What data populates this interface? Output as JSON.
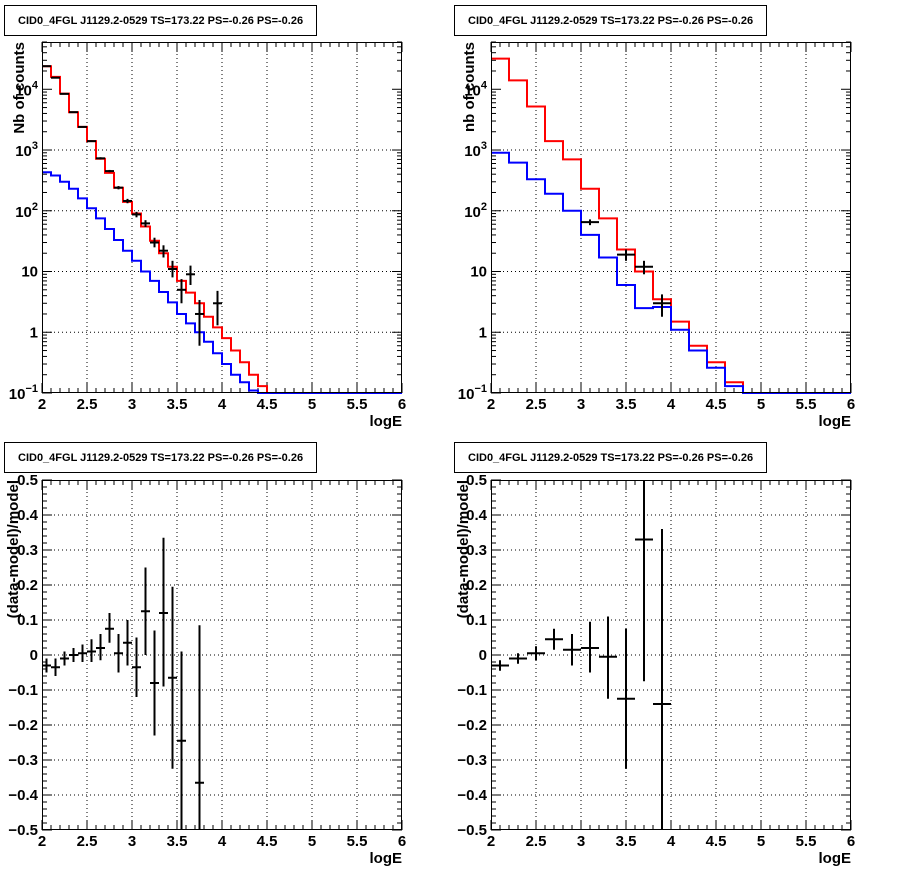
{
  "chart_data": [
    {
      "type": "line",
      "kind": "counts",
      "title": "CID0_4FGL J1129.2-0529 TS=173.22 PS=-0.26 PS=-0.26",
      "xlabel": "logE",
      "ylabel": "Nb of counts",
      "xlim": [
        2,
        6
      ],
      "ylim": [
        0.1,
        60000
      ],
      "yscale": "log",
      "grid": true,
      "x_ticks": [
        "2",
        "2.5",
        "3",
        "3.5",
        "4",
        "4.5",
        "5",
        "5.5",
        "6"
      ],
      "y_ticks": [
        {
          "value": 0.1,
          "base": "10",
          "exp": "−1"
        },
        {
          "value": 1,
          "label": "1"
        },
        {
          "value": 10,
          "label": "10"
        },
        {
          "value": 100,
          "base": "10",
          "exp": "2"
        },
        {
          "value": 1000,
          "base": "10",
          "exp": "3"
        },
        {
          "value": 10000,
          "base": "10",
          "exp": "4"
        }
      ],
      "bin_edges": [
        2.0,
        2.1,
        2.2,
        2.3,
        2.4,
        2.5,
        2.6,
        2.7,
        2.8,
        2.9,
        3.0,
        3.1,
        3.2,
        3.3,
        3.4,
        3.5,
        3.6,
        3.7,
        3.8,
        3.9,
        4.0,
        4.1,
        4.2,
        4.3,
        4.4,
        4.5,
        4.6,
        4.7,
        4.8,
        4.9,
        5.0,
        5.1,
        5.2,
        5.3,
        5.4,
        5.5,
        5.6,
        5.7,
        5.8,
        5.9,
        6.0
      ],
      "series": [
        {
          "color": "#ff0000",
          "values": [
            24000,
            16000,
            8500,
            4200,
            2400,
            1400,
            720,
            420,
            240,
            140,
            90,
            55,
            32,
            20,
            12,
            7,
            4.5,
            3.0,
            1.8,
            1.2,
            0.8,
            0.5,
            0.32,
            0.2,
            0.13,
            0.1,
            0.1,
            0.1,
            0.1,
            0.1,
            0.1,
            0.1,
            0.1,
            0.1,
            0.1,
            0.1,
            0.1,
            0.1,
            0.1,
            0.1
          ]
        },
        {
          "color": "#0000ff",
          "values": [
            430,
            380,
            300,
            230,
            160,
            110,
            75,
            50,
            33,
            22,
            15,
            10,
            7,
            4.6,
            3.1,
            2.0,
            1.4,
            1.0,
            0.7,
            0.45,
            0.3,
            0.2,
            0.15,
            0.11,
            0.1,
            0.1,
            0.1,
            0.1,
            0.1,
            0.1,
            0.1,
            0.1,
            0.1,
            0.1,
            0.1,
            0.1,
            0.1,
            0.1,
            0.1,
            0.1
          ]
        }
      ],
      "points": [
        {
          "x": 2.05,
          "y": 24000,
          "xerr": 0.05,
          "ylo": 23700,
          "yhi": 24300
        },
        {
          "x": 2.15,
          "y": 15500,
          "xerr": 0.05,
          "ylo": 15300,
          "yhi": 15700
        },
        {
          "x": 2.25,
          "y": 8400,
          "xerr": 0.05,
          "ylo": 8300,
          "yhi": 8500
        },
        {
          "x": 2.35,
          "y": 4200,
          "xerr": 0.05,
          "ylo": 4100,
          "yhi": 4300
        },
        {
          "x": 2.45,
          "y": 2400,
          "xerr": 0.05,
          "ylo": 2350,
          "yhi": 2450
        },
        {
          "x": 2.55,
          "y": 1400,
          "xerr": 0.05,
          "ylo": 1360,
          "yhi": 1440
        },
        {
          "x": 2.65,
          "y": 730,
          "xerr": 0.05,
          "ylo": 700,
          "yhi": 760
        },
        {
          "x": 2.75,
          "y": 450,
          "xerr": 0.05,
          "ylo": 430,
          "yhi": 470
        },
        {
          "x": 2.85,
          "y": 240,
          "xerr": 0.05,
          "ylo": 225,
          "yhi": 255
        },
        {
          "x": 2.95,
          "y": 145,
          "xerr": 0.05,
          "ylo": 133,
          "yhi": 157
        },
        {
          "x": 3.05,
          "y": 87,
          "xerr": 0.05,
          "ylo": 78,
          "yhi": 96
        },
        {
          "x": 3.15,
          "y": 62,
          "xerr": 0.05,
          "ylo": 54,
          "yhi": 70
        },
        {
          "x": 3.25,
          "y": 30,
          "xerr": 0.05,
          "ylo": 25,
          "yhi": 36
        },
        {
          "x": 3.35,
          "y": 22,
          "xerr": 0.05,
          "ylo": 17,
          "yhi": 27
        },
        {
          "x": 3.45,
          "y": 11,
          "xerr": 0.05,
          "ylo": 8,
          "yhi": 15
        },
        {
          "x": 3.55,
          "y": 5,
          "xerr": 0.05,
          "ylo": 3,
          "yhi": 7.5
        },
        {
          "x": 3.65,
          "y": 9,
          "xerr": 0.05,
          "ylo": 6,
          "yhi": 12.5
        },
        {
          "x": 3.75,
          "y": 2,
          "xerr": 0.05,
          "ylo": 0.6,
          "yhi": 3.4
        },
        {
          "x": 3.95,
          "y": 3,
          "xerr": 0.05,
          "ylo": 1.3,
          "yhi": 4.8
        }
      ]
    },
    {
      "type": "line",
      "kind": "counts",
      "title": "CID0_4FGL J1129.2-0529 TS=173.22 PS=-0.26 PS=-0.26",
      "xlabel": "logE",
      "ylabel": "nb of counts",
      "xlim": [
        2,
        6
      ],
      "ylim": [
        0.1,
        60000
      ],
      "yscale": "log",
      "grid": true,
      "x_ticks": [
        "2",
        "2.5",
        "3",
        "3.5",
        "4",
        "4.5",
        "5",
        "5.5",
        "6"
      ],
      "y_ticks": [
        {
          "value": 0.1,
          "base": "10",
          "exp": "−1"
        },
        {
          "value": 1,
          "label": "1"
        },
        {
          "value": 10,
          "label": "10"
        },
        {
          "value": 100,
          "base": "10",
          "exp": "2"
        },
        {
          "value": 1000,
          "base": "10",
          "exp": "3"
        },
        {
          "value": 10000,
          "base": "10",
          "exp": "4"
        }
      ],
      "bin_edges": [
        2.0,
        2.2,
        2.4,
        2.6,
        2.8,
        3.0,
        3.2,
        3.4,
        3.6,
        3.8,
        4.0,
        4.2,
        4.4,
        4.6,
        4.8,
        5.0,
        5.2,
        5.4,
        5.6,
        5.8,
        6.0
      ],
      "series": [
        {
          "color": "#ff0000",
          "values": [
            32000,
            14000,
            5200,
            1400,
            700,
            230,
            75,
            23,
            10,
            3.5,
            1.5,
            0.6,
            0.32,
            0.15,
            0.1,
            0.1,
            0.1,
            0.1,
            0.1,
            0.1
          ]
        },
        {
          "color": "#0000ff",
          "values": [
            900,
            620,
            330,
            190,
            100,
            40,
            17,
            6,
            2.5,
            2.6,
            1.1,
            0.5,
            0.26,
            0.13,
            0.1,
            0.1,
            0.1,
            0.1,
            0.1,
            0.1
          ]
        }
      ],
      "points": [
        {
          "x": 3.1,
          "y": 65,
          "xerr": 0.1,
          "ylo": 58,
          "yhi": 72
        },
        {
          "x": 3.5,
          "y": 19,
          "xerr": 0.1,
          "ylo": 15,
          "yhi": 23
        },
        {
          "x": 3.7,
          "y": 12,
          "xerr": 0.1,
          "ylo": 9,
          "yhi": 15
        },
        {
          "x": 3.9,
          "y": 3,
          "xerr": 0.1,
          "ylo": 1.8,
          "yhi": 4.2
        }
      ]
    },
    {
      "type": "scatter",
      "kind": "residuals",
      "title": "CID0_4FGL J1129.2-0529 TS=173.22 PS=-0.26 PS=-0.26",
      "xlabel": "logE",
      "ylabel": "(data-model)/model",
      "xlim": [
        2,
        6
      ],
      "ylim": [
        -0.5,
        0.5
      ],
      "grid": true,
      "x_ticks": [
        "2",
        "2.5",
        "3",
        "3.5",
        "4",
        "4.5",
        "5",
        "5.5",
        "6"
      ],
      "y_ticks": [
        "−0.5",
        "−0.4",
        "−0.3",
        "−0.2",
        "−0.1",
        "0",
        "0.1",
        "0.2",
        "0.3",
        "0.4",
        "0.5"
      ],
      "points": [
        {
          "x": 2.05,
          "y": -0.03,
          "xerr": 0.05,
          "ylo": -0.05,
          "yhi": -0.01
        },
        {
          "x": 2.15,
          "y": -0.035,
          "xerr": 0.05,
          "ylo": -0.06,
          "yhi": -0.01
        },
        {
          "x": 2.25,
          "y": -0.01,
          "xerr": 0.05,
          "ylo": -0.03,
          "yhi": 0.01
        },
        {
          "x": 2.35,
          "y": 0.0,
          "xerr": 0.05,
          "ylo": -0.02,
          "yhi": 0.02
        },
        {
          "x": 2.45,
          "y": 0.005,
          "xerr": 0.05,
          "ylo": -0.02,
          "yhi": 0.03
        },
        {
          "x": 2.55,
          "y": 0.01,
          "xerr": 0.05,
          "ylo": -0.02,
          "yhi": 0.045
        },
        {
          "x": 2.65,
          "y": 0.02,
          "xerr": 0.05,
          "ylo": -0.015,
          "yhi": 0.06
        },
        {
          "x": 2.75,
          "y": 0.075,
          "xerr": 0.05,
          "ylo": 0.035,
          "yhi": 0.12
        },
        {
          "x": 2.85,
          "y": 0.005,
          "xerr": 0.05,
          "ylo": -0.05,
          "yhi": 0.06
        },
        {
          "x": 2.95,
          "y": 0.035,
          "xerr": 0.05,
          "ylo": -0.03,
          "yhi": 0.1
        },
        {
          "x": 3.05,
          "y": -0.035,
          "xerr": 0.05,
          "ylo": -0.12,
          "yhi": 0.05
        },
        {
          "x": 3.15,
          "y": 0.125,
          "xerr": 0.05,
          "ylo": 0.0,
          "yhi": 0.25
        },
        {
          "x": 3.25,
          "y": -0.08,
          "xerr": 0.05,
          "ylo": -0.23,
          "yhi": 0.07
        },
        {
          "x": 3.35,
          "y": 0.12,
          "xerr": 0.05,
          "ylo": -0.09,
          "yhi": 0.335
        },
        {
          "x": 3.45,
          "y": -0.065,
          "xerr": 0.05,
          "ylo": -0.325,
          "yhi": 0.195
        },
        {
          "x": 3.55,
          "y": -0.245,
          "xerr": 0.05,
          "ylo": -0.5,
          "yhi": 0.01
        },
        {
          "x": 3.75,
          "y": -0.365,
          "xerr": 0.05,
          "ylo": -0.5,
          "yhi": 0.085
        }
      ]
    },
    {
      "type": "scatter",
      "kind": "residuals",
      "title": "CID0_4FGL J1129.2-0529 TS=173.22 PS=-0.26 PS=-0.26",
      "xlabel": "logE",
      "ylabel": "(data-model)/model",
      "xlim": [
        2,
        6
      ],
      "ylim": [
        -0.5,
        0.5
      ],
      "grid": true,
      "x_ticks": [
        "2",
        "2.5",
        "3",
        "3.5",
        "4",
        "4.5",
        "5",
        "5.5",
        "6"
      ],
      "y_ticks": [
        "−0.5",
        "−0.4",
        "−0.3",
        "−0.2",
        "−0.1",
        "0",
        "0.1",
        "0.2",
        "0.3",
        "0.4",
        "0.5"
      ],
      "points": [
        {
          "x": 2.1,
          "y": -0.03,
          "xerr": 0.1,
          "ylo": -0.045,
          "yhi": -0.015
        },
        {
          "x": 2.3,
          "y": -0.01,
          "xerr": 0.1,
          "ylo": -0.025,
          "yhi": 0.005
        },
        {
          "x": 2.5,
          "y": 0.005,
          "xerr": 0.1,
          "ylo": -0.015,
          "yhi": 0.025
        },
        {
          "x": 2.7,
          "y": 0.045,
          "xerr": 0.1,
          "ylo": 0.015,
          "yhi": 0.075
        },
        {
          "x": 2.9,
          "y": 0.015,
          "xerr": 0.1,
          "ylo": -0.03,
          "yhi": 0.06
        },
        {
          "x": 3.1,
          "y": 0.02,
          "xerr": 0.1,
          "ylo": -0.05,
          "yhi": 0.095
        },
        {
          "x": 3.3,
          "y": -0.005,
          "xerr": 0.1,
          "ylo": -0.125,
          "yhi": 0.11
        },
        {
          "x": 3.5,
          "y": -0.125,
          "xerr": 0.1,
          "ylo": -0.325,
          "yhi": 0.075
        },
        {
          "x": 3.7,
          "y": 0.33,
          "xerr": 0.1,
          "ylo": -0.075,
          "yhi": 0.5
        },
        {
          "x": 3.9,
          "y": -0.14,
          "xerr": 0.1,
          "ylo": -0.5,
          "yhi": 0.36
        }
      ]
    }
  ]
}
